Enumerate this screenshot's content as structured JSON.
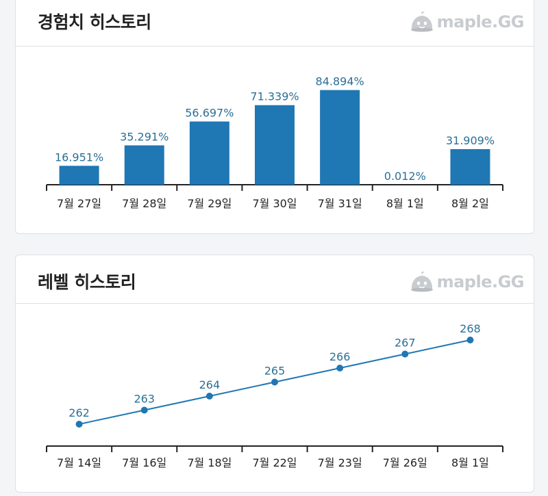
{
  "exp_card": {
    "title": "경험치 히스토리",
    "brand": "maple.GG",
    "brand_icon": "slime-mascot-icon"
  },
  "level_card": {
    "title": "레벨 히스토리",
    "brand": "maple.GG",
    "brand_icon": "slime-mascot-icon"
  },
  "colors": {
    "bar": "#1f77b4",
    "label": "#2a6f97",
    "axis": "#222222",
    "brand": "#c8cbcf"
  },
  "chart_data": [
    {
      "type": "bar",
      "title": "경험치 히스토리",
      "categories": [
        "7월 27일",
        "7월 28일",
        "7월 29일",
        "7월 30일",
        "7월 31일",
        "8월 1일",
        "8월 2일"
      ],
      "values": [
        16.951,
        35.291,
        56.697,
        71.339,
        84.894,
        0.012,
        31.909
      ],
      "value_labels": [
        "16.951%",
        "35.291%",
        "56.697%",
        "71.339%",
        "84.894%",
        "0.012%",
        "31.909%"
      ],
      "ylim": [
        0,
        100
      ],
      "grid": false,
      "xlabel": "",
      "ylabel": ""
    },
    {
      "type": "line",
      "title": "레벨 히스토리",
      "categories": [
        "7월 14일",
        "7월 16일",
        "7월 18일",
        "7월 22일",
        "7월 23일",
        "7월 26일",
        "8월 1일"
      ],
      "values": [
        262,
        263,
        264,
        265,
        266,
        267,
        268
      ],
      "value_labels": [
        "262",
        "263",
        "264",
        "265",
        "266",
        "267",
        "268"
      ],
      "grid": false,
      "xlabel": "",
      "ylabel": ""
    }
  ]
}
